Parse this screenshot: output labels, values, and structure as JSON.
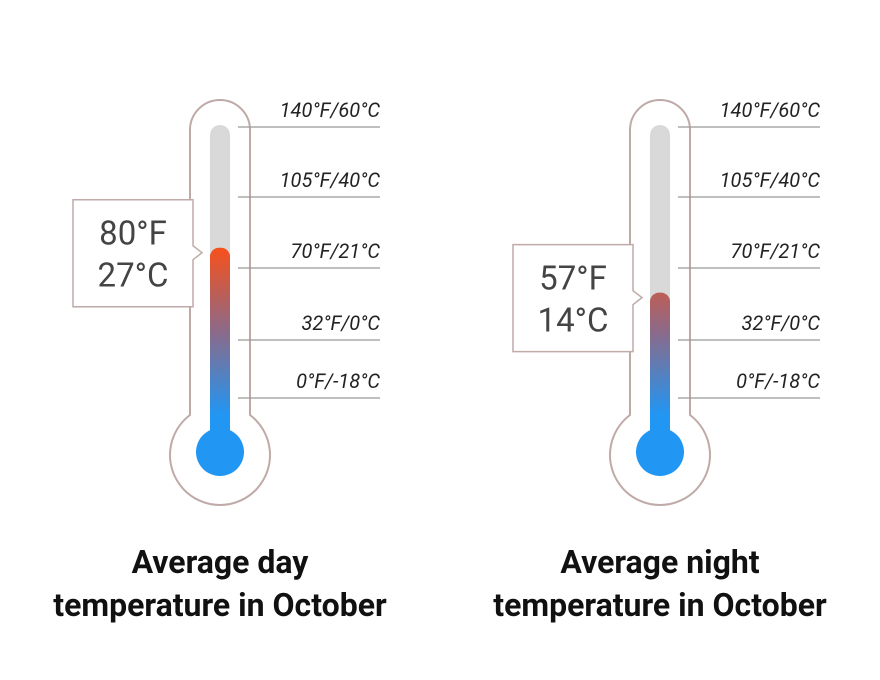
{
  "chart_data": [
    {
      "type": "thermometer",
      "title": [
        "Average day",
        "temperature in October"
      ],
      "value": 80,
      "value_label": "80°F",
      "value_label_celsius": "27°C",
      "ylim": [
        0,
        140
      ],
      "yticks": [
        {
          "value": 0,
          "label": "0°F/-18°C"
        },
        {
          "value": 32,
          "label": "32°F/0°C"
        },
        {
          "value": 70,
          "label": "70°F/21°C"
        },
        {
          "value": 105,
          "label": "105°F/40°C"
        },
        {
          "value": 140,
          "label": "140°F/60°C"
        }
      ]
    },
    {
      "type": "thermometer",
      "title": [
        "Average night",
        "temperature in October"
      ],
      "value": 57,
      "value_label": "57°F",
      "value_label_celsius": "14°C",
      "ylim": [
        0,
        140
      ],
      "yticks": [
        {
          "value": 0,
          "label": "0°F/-18°C"
        },
        {
          "value": 32,
          "label": "32°F/0°C"
        },
        {
          "value": 70,
          "label": "70°F/21°C"
        },
        {
          "value": 105,
          "label": "105°F/40°C"
        },
        {
          "value": 140,
          "label": "140°F/60°C"
        }
      ]
    }
  ]
}
